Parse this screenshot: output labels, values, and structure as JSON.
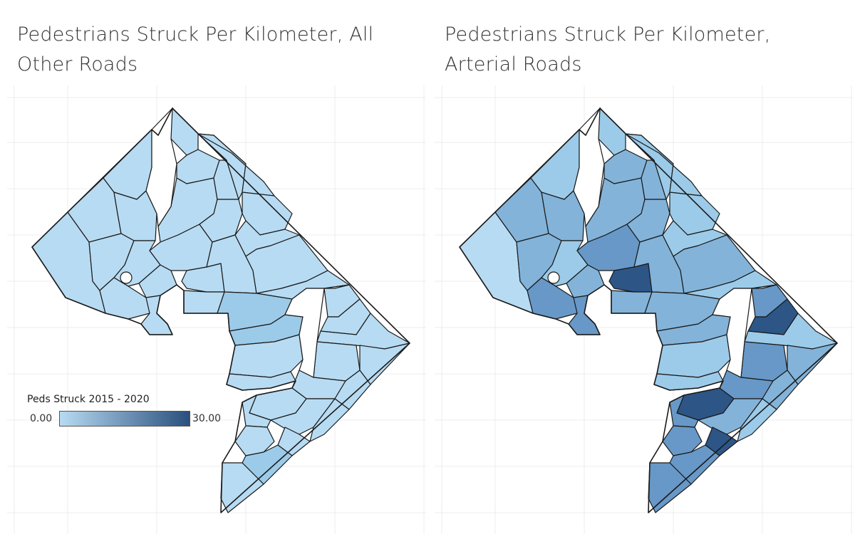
{
  "panels": [
    {
      "title": "Pedestrians Struck Per Kilometer, All Other Roads",
      "title_line1": "Pedestrians Struck Per Kilometer, All",
      "title_line2": "Other Roads"
    },
    {
      "title": "Pedestrians Struck Per Kilometer, Arterial Roads",
      "title_line1": "Pedestrians Struck Per Kilometer,",
      "title_line2": "Arterial Roads"
    }
  ],
  "legend": {
    "title": "Peds Struck 2015 - 2020",
    "min_label": "0.00",
    "max_label": "30.00",
    "color_low": "#b7dbf2",
    "color_high": "#2a4f7d"
  },
  "colors": {
    "border": "#1a1a1a",
    "grid": "#ececec",
    "background": "#ffffff",
    "shade_light": "#b7dbf2",
    "shade_2": "#9ccbe9",
    "shade_3": "#83b3d9",
    "shade_4": "#6798c7",
    "shade_5": "#4f7fb2",
    "shade_dark": "#2d5687"
  }
}
